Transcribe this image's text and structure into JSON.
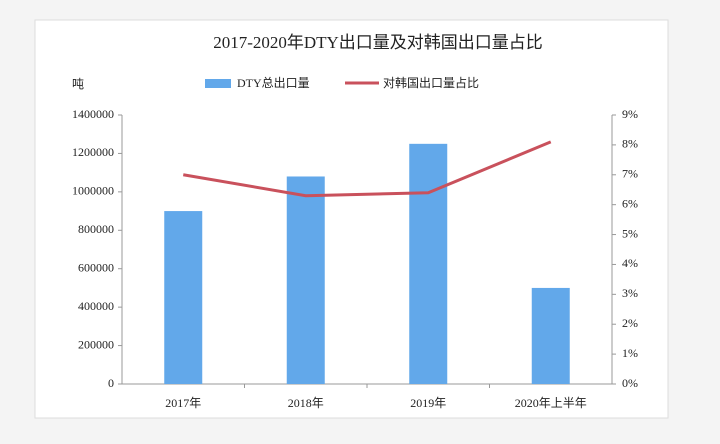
{
  "chart_data": {
    "type": "bar-line",
    "title": "2017-2020年DTY出口量及对韩国出口量占比",
    "y_label": "吨",
    "categories": [
      "2017年",
      "2018年",
      "2019年",
      "2020年上半年"
    ],
    "series": [
      {
        "name": "DTY总出口量",
        "color": "#62a8ea",
        "type": "bar",
        "values": [
          900000,
          1080000,
          1250000,
          500000
        ]
      },
      {
        "name": "对韩国出口量占比",
        "color": "#c9515c",
        "type": "line",
        "axis": "y2",
        "values": [
          7.0,
          6.3,
          6.4,
          8.1
        ]
      }
    ],
    "ylim": [
      0,
      1400000
    ],
    "yticks": [
      0,
      200000,
      400000,
      600000,
      800000,
      1000000,
      1200000,
      1400000
    ],
    "y2lim": [
      0,
      9
    ],
    "y2ticks": [
      {
        "value": 0,
        "label": "0%"
      },
      {
        "value": 1,
        "label": "1%"
      },
      {
        "value": 2,
        "label": "2%"
      },
      {
        "value": 3,
        "label": "3%"
      },
      {
        "value": 4,
        "label": "4%"
      },
      {
        "value": 5,
        "label": "5%"
      },
      {
        "value": 6,
        "label": "6%"
      },
      {
        "value": 7,
        "label": "7%"
      },
      {
        "value": 8,
        "label": "8%"
      },
      {
        "value": 9,
        "label": "9%"
      }
    ],
    "grid": false,
    "legend": "top"
  }
}
